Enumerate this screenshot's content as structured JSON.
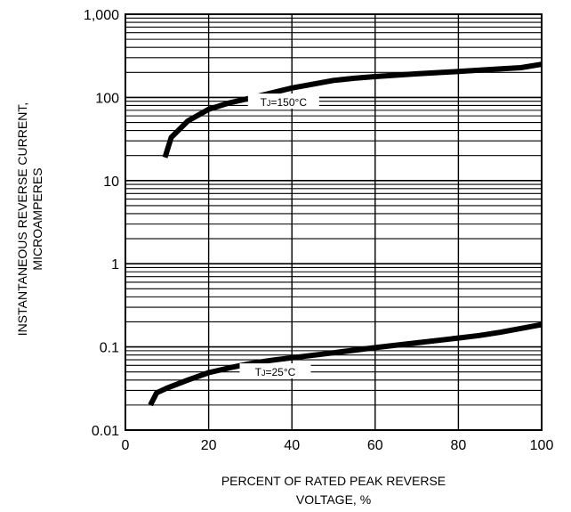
{
  "chart_data": {
    "type": "line",
    "title": "",
    "xlabel": [
      "PERCENT OF RATED PEAK REVERSE",
      "VOLTAGE, %"
    ],
    "ylabel": [
      "INSTANTANEOUS REVERSE  CURRENT,",
      "MICROAMPERES"
    ],
    "xlim": [
      0,
      100
    ],
    "ylim": [
      0.01,
      1000
    ],
    "yscale": "log",
    "grid": true,
    "xticks": [
      0,
      20,
      40,
      60,
      80,
      100
    ],
    "xtick_labels": [
      "0",
      "20",
      "40",
      "60",
      "80",
      "100"
    ],
    "yticks": [
      0.01,
      0.1,
      1,
      10,
      100,
      1000
    ],
    "ytick_labels": [
      "0.01",
      "0.1",
      "1",
      "10",
      "100",
      "1,000"
    ],
    "series": [
      {
        "name": "TJ=150°C",
        "label_prefix": "T",
        "label_sub": "J",
        "label_suffix": "=150°C",
        "label_at": 38,
        "x": [
          9.5,
          11,
          15,
          20,
          25,
          30,
          40,
          50,
          55,
          60,
          70,
          80,
          90,
          95,
          100
        ],
        "y": [
          19,
          33,
          52,
          72,
          86,
          98,
          130,
          160,
          170,
          178,
          192,
          205,
          220,
          228,
          250
        ]
      },
      {
        "name": "TJ=25°C",
        "label_prefix": "T",
        "label_sub": "J",
        "label_suffix": "=25°C",
        "label_at": 36,
        "x": [
          6,
          7.5,
          10,
          15,
          20,
          25,
          30,
          35,
          40,
          50,
          60,
          70,
          80,
          85,
          90,
          100
        ],
        "y": [
          0.02,
          0.028,
          0.032,
          0.04,
          0.049,
          0.056,
          0.063,
          0.069,
          0.074,
          0.085,
          0.098,
          0.112,
          0.128,
          0.137,
          0.15,
          0.185
        ]
      }
    ]
  }
}
